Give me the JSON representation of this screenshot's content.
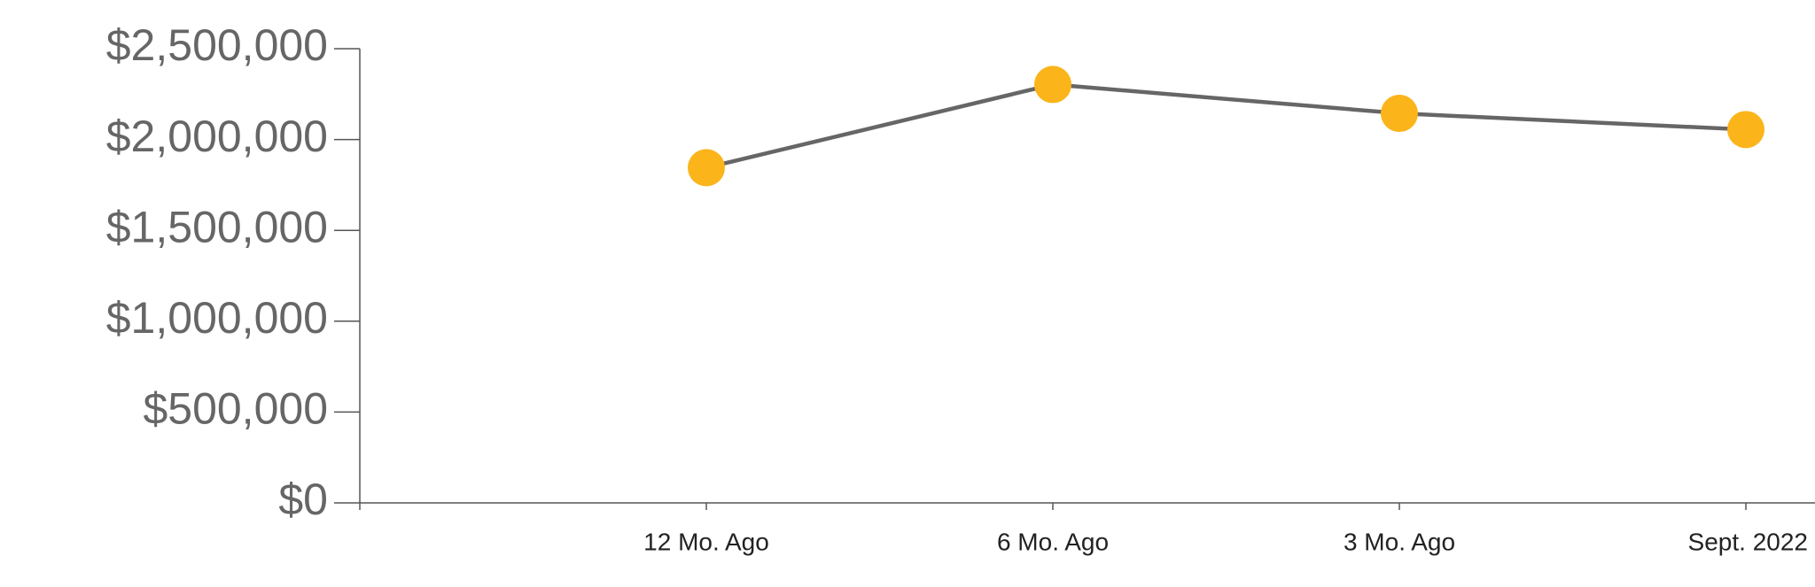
{
  "chart_data": {
    "type": "line",
    "categories": [
      null,
      "12 Mo. Ago",
      "6 Mo. Ago",
      "3 Mo. Ago",
      "Sept. 2022"
    ],
    "series": [
      {
        "values": [
          null,
          1845000,
          2303000,
          2144000,
          2055000
        ],
        "color": "#fbb41a"
      }
    ],
    "line_color": "#666666",
    "ylim": [
      0,
      2500000
    ],
    "yticks": [
      {
        "value": 0,
        "label": "$0"
      },
      {
        "value": 500000,
        "label": "$500,000"
      },
      {
        "value": 1000000,
        "label": "$1,000,000"
      },
      {
        "value": 1500000,
        "label": "$1,500,000"
      },
      {
        "value": 2000000,
        "label": "$2,000,000"
      },
      {
        "value": 2500000,
        "label": "$2,500,000"
      }
    ],
    "grid": false
  }
}
